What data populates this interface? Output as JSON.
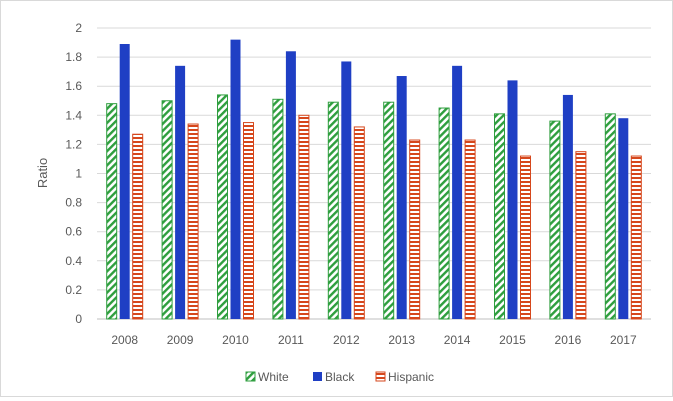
{
  "chart_data": {
    "type": "bar",
    "title": "",
    "xlabel": "",
    "ylabel": "Ratio",
    "ylim": [
      0,
      2
    ],
    "yticks": [
      "0",
      "0.2",
      "0.4",
      "0.6",
      "0.8",
      "1",
      "1.2",
      "1.4",
      "1.6",
      "1.8",
      "2"
    ],
    "grid": true,
    "legend_position": "bottom",
    "categories": [
      "2008",
      "2009",
      "2010",
      "2011",
      "2012",
      "2013",
      "2014",
      "2015",
      "2016",
      "2017"
    ],
    "series": [
      {
        "name": "White",
        "values": [
          1.48,
          1.5,
          1.54,
          1.51,
          1.49,
          1.49,
          1.45,
          1.41,
          1.36,
          1.41
        ],
        "color": "#2e9e3e",
        "pattern": "diagonal-stripes"
      },
      {
        "name": "Black",
        "values": [
          1.89,
          1.74,
          1.92,
          1.84,
          1.77,
          1.67,
          1.74,
          1.64,
          1.54,
          1.38
        ],
        "color": "#1f3fc4",
        "pattern": "solid"
      },
      {
        "name": "Hispanic",
        "values": [
          1.27,
          1.34,
          1.35,
          1.4,
          1.32,
          1.23,
          1.23,
          1.12,
          1.15,
          1.12
        ],
        "color": "#d6471c",
        "pattern": "horizontal-stripes"
      }
    ]
  }
}
